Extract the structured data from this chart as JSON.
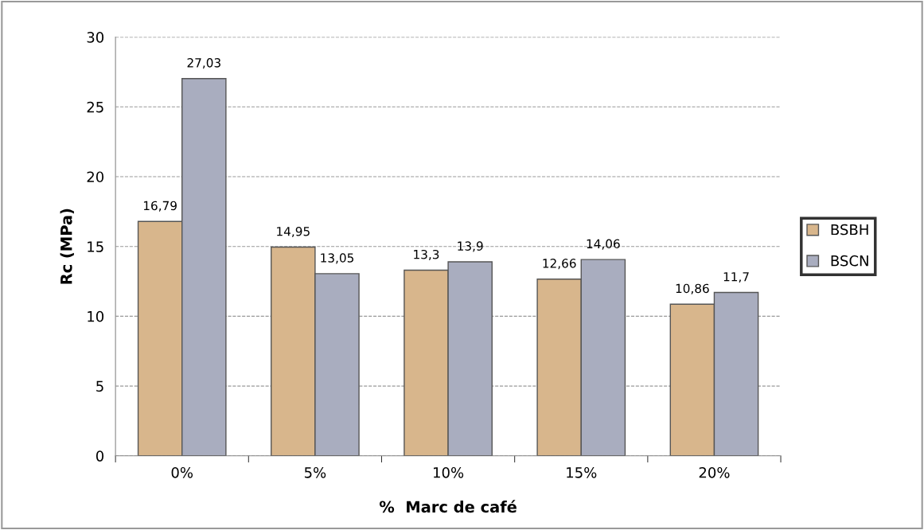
{
  "chart_data": {
    "type": "bar",
    "xlabel": "%  Marc de café",
    "ylabel": "Rc (MPa)",
    "categories": [
      "0%",
      "5%",
      "10%",
      "15%",
      "20%"
    ],
    "series": [
      {
        "name": "BSBH",
        "color": "#d8b68c",
        "values": [
          16.79,
          14.95,
          13.3,
          12.66,
          10.86
        ],
        "value_labels": [
          "16,79",
          "14,95",
          "13,3",
          "12,66",
          "10,86"
        ]
      },
      {
        "name": "BSCN",
        "color": "#a9adbf",
        "values": [
          27.03,
          13.05,
          13.9,
          14.06,
          11.7
        ],
        "value_labels": [
          "27,03",
          "13,05",
          "13,9",
          "14,06",
          "11,7"
        ]
      }
    ],
    "ylim": [
      0,
      30
    ],
    "yticks": [
      0,
      5,
      10,
      15,
      20,
      25,
      30
    ],
    "grid": "y",
    "legend": "right"
  }
}
